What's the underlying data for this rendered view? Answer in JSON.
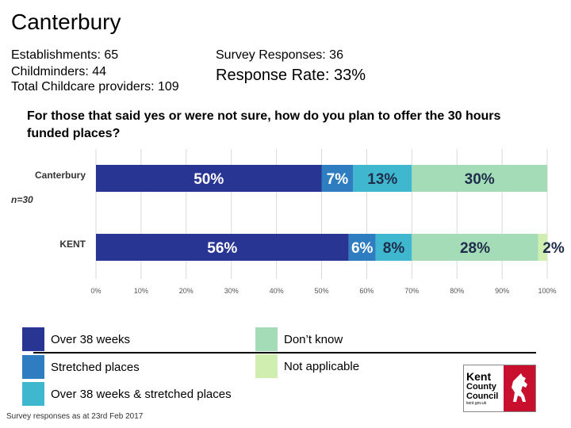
{
  "header": {
    "title": "Canterbury",
    "establishments": "Establishments: 65",
    "childminders": "Childminders: 44",
    "total_providers": "Total Childcare providers: 109",
    "survey_responses": "Survey Responses: 36",
    "response_rate": "Response Rate: 33%"
  },
  "question": "For those that said yes or were not sure, how do you plan to offer the 30 hours funded places?",
  "chart_data": {
    "type": "bar",
    "orientation": "horizontal",
    "stacked": true,
    "categories": [
      "Canterbury",
      "KENT"
    ],
    "category_note": "n=30",
    "xlim": [
      0,
      100
    ],
    "x_ticks": [
      "0%",
      "10%",
      "20%",
      "30%",
      "40%",
      "50%",
      "60%",
      "70%",
      "80%",
      "90%",
      "100%"
    ],
    "grid": true,
    "legend_position": "bottom",
    "series": [
      {
        "name": "Over 38 weeks",
        "color": "#283593",
        "values": [
          50,
          56
        ],
        "labels": [
          "50%",
          "56%"
        ]
      },
      {
        "name": "Stretched places",
        "color": "#2e7dc0",
        "values": [
          7,
          6
        ],
        "labels": [
          "7%",
          "6%"
        ]
      },
      {
        "name": "Over 38 weeks & stretched places",
        "color": "#3fb8cf",
        "values": [
          13,
          8
        ],
        "labels": [
          "13%",
          "8%"
        ]
      },
      {
        "name": "Don’t know",
        "color": "#a4dcb8",
        "values": [
          30,
          28
        ],
        "labels": [
          "30%",
          "28%"
        ]
      },
      {
        "name": "Not applicable",
        "color": "#cfeeb0",
        "values": [
          0,
          2
        ],
        "labels": [
          "",
          "2%"
        ]
      }
    ]
  },
  "footnote": "Survey responses as at 23rd Feb 2017",
  "logo": {
    "line1": "Kent",
    "line2": "County",
    "line3": "Council",
    "url": "kent.gov.uk"
  }
}
